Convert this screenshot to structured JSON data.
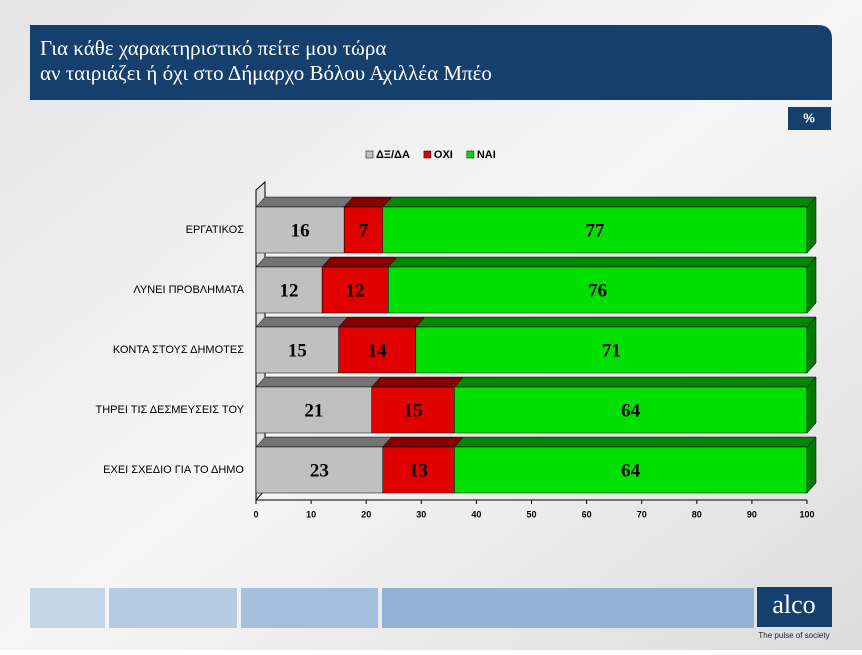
{
  "header": {
    "title": [
      "Για κάθε χαρακτηριστικό πείτε μου τώρα",
      "αν ταιριάζει ή όχι στο Δήμαρχο Βόλου Αχιλλέα Μπέο"
    ],
    "badge": "%"
  },
  "logo": {
    "name": "alco",
    "tagline": "The pulse of society"
  },
  "chart_data": {
    "type": "stacked-bar-horizontal",
    "categories": [
      "ΕΡΓΑΤΙΚΟΣ",
      "ΛΥΝΕΙ ΠΡΟΒΛΗΜΑΤΑ",
      "ΚΟΝΤΑ ΣΤΟΥΣ ΔΗΜΟΤΕΣ",
      "ΤΗΡΕΙ ΤΙΣ ΔΕΣΜΕΥΣΕΙΣ ΤΟΥ",
      "ΕΧΕΙ ΣΧΕΔΙΟ ΓΙΑ ΤΟ ΔΗΜΟ"
    ],
    "series": [
      {
        "name": "ΔΞ/ΔΑ",
        "color": "#c0c0c0",
        "values": [
          16,
          12,
          15,
          21,
          23
        ]
      },
      {
        "name": "ΟΧΙ",
        "color": "#e00000",
        "values": [
          7,
          12,
          14,
          15,
          13
        ]
      },
      {
        "name": "ΝΑΙ",
        "color": "#00e000",
        "values": [
          77,
          76,
          71,
          64,
          64
        ]
      }
    ],
    "xlim": [
      0,
      100
    ],
    "xticks": [
      0,
      10,
      20,
      30,
      40,
      50,
      60,
      70,
      80,
      90,
      100
    ]
  }
}
